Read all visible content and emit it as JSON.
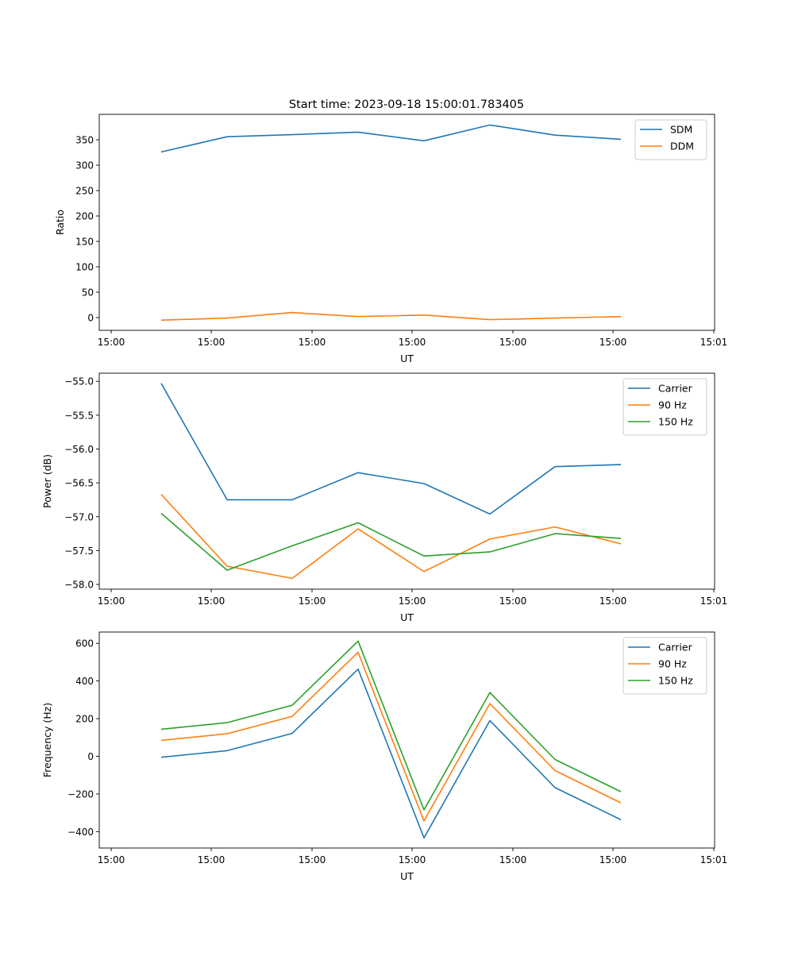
{
  "figure_title": "Start time: 2023-09-18 15:00:01.783405",
  "chart_data": [
    {
      "type": "line",
      "title": "Start time: 2023-09-18 15:00:01.783405",
      "xlabel": "UT",
      "ylabel": "Ratio",
      "x_tick_labels": [
        "15:00",
        "15:00",
        "15:00",
        "15:00",
        "15:00",
        "15:00",
        "15:00",
        "15:01"
      ],
      "x_point_count": 8,
      "ylim": [
        -25,
        400
      ],
      "yticks": [
        0,
        50,
        100,
        150,
        200,
        250,
        300,
        350
      ],
      "ytick_labels": [
        "0",
        "50",
        "100",
        "150",
        "200",
        "250",
        "300",
        "350"
      ],
      "legend_position": "top-right",
      "series": [
        {
          "name": "SDM",
          "color": "#1f77b4",
          "values": [
            326,
            356,
            360,
            365,
            348,
            379,
            359,
            351
          ]
        },
        {
          "name": "DDM",
          "color": "#ff7f0e",
          "values": [
            -5,
            -1,
            10,
            2,
            5,
            -4,
            -1,
            2
          ]
        }
      ]
    },
    {
      "type": "line",
      "title": "",
      "xlabel": "UT",
      "ylabel": "Power (dB)",
      "x_tick_labels": [
        "15:00",
        "15:00",
        "15:00",
        "15:00",
        "15:00",
        "15:00",
        "15:00",
        "15:01"
      ],
      "x_point_count": 8,
      "ylim": [
        -58.07,
        -54.88
      ],
      "yticks": [
        -58.0,
        -57.5,
        -57.0,
        -56.5,
        -56.0,
        -55.5,
        -55.0
      ],
      "ytick_labels": [
        "−58.0",
        "−57.5",
        "−57.0",
        "−56.5",
        "−56.0",
        "−55.5",
        "−55.0"
      ],
      "legend_position": "top-right",
      "series": [
        {
          "name": "Carrier",
          "color": "#1f77b4",
          "values": [
            -55.03,
            -56.75,
            -56.75,
            -56.35,
            -56.51,
            -56.96,
            -56.26,
            -56.23
          ]
        },
        {
          "name": "90 Hz",
          "color": "#ff7f0e",
          "values": [
            -56.67,
            -57.73,
            -57.91,
            -57.18,
            -57.81,
            -57.33,
            -57.15,
            -57.4
          ]
        },
        {
          "name": "150 Hz",
          "color": "#2ca02c",
          "values": [
            -56.95,
            -57.79,
            -57.43,
            -57.09,
            -57.58,
            -57.52,
            -57.25,
            -57.32
          ]
        }
      ]
    },
    {
      "type": "line",
      "title": "",
      "xlabel": "UT",
      "ylabel": "Frequency (Hz)",
      "x_tick_labels": [
        "15:00",
        "15:00",
        "15:00",
        "15:00",
        "15:00",
        "15:00",
        "15:00",
        "15:01"
      ],
      "x_point_count": 8,
      "ylim": [
        -487,
        660
      ],
      "yticks": [
        -400,
        -200,
        0,
        200,
        400,
        600
      ],
      "ytick_labels": [
        "−400",
        "−200",
        "0",
        "200",
        "400",
        "600"
      ],
      "legend_position": "top-right",
      "series": [
        {
          "name": "Carrier",
          "color": "#1f77b4",
          "values": [
            -5,
            30,
            122,
            463,
            -433,
            190,
            -166,
            -337
          ]
        },
        {
          "name": "90 Hz",
          "color": "#ff7f0e",
          "values": [
            85,
            120,
            212,
            553,
            -343,
            280,
            -76,
            -247
          ]
        },
        {
          "name": "150 Hz",
          "color": "#2ca02c",
          "values": [
            144,
            179,
            271,
            612,
            -284,
            339,
            -17,
            -188
          ]
        }
      ]
    }
  ]
}
